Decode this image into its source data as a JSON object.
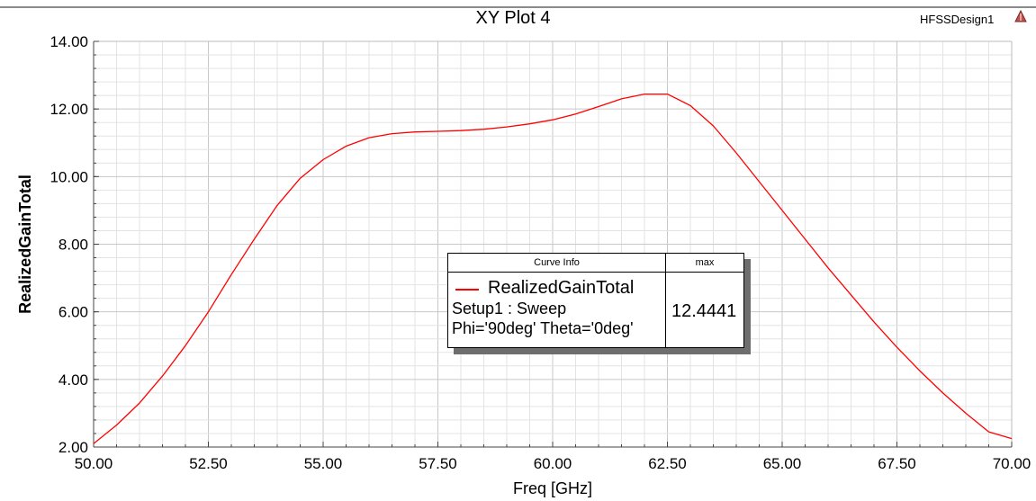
{
  "chart_data": {
    "type": "line",
    "title": "XY Plot 4",
    "xlabel": "Freq [GHz]",
    "ylabel": "RealizedGainTotal",
    "xlim": [
      50.0,
      70.0
    ],
    "ylim": [
      2.0,
      14.0
    ],
    "x_ticks": [
      "50.00",
      "52.50",
      "55.00",
      "57.50",
      "60.00",
      "62.50",
      "65.00",
      "67.50",
      "70.00"
    ],
    "y_ticks": [
      "2.00",
      "4.00",
      "6.00",
      "8.00",
      "10.00",
      "12.00",
      "14.00"
    ],
    "grid": true,
    "series": [
      {
        "name": "RealizedGainTotal",
        "color": "#ff0000",
        "x": [
          50.0,
          50.5,
          51.0,
          51.5,
          52.0,
          52.5,
          53.0,
          53.5,
          54.0,
          54.5,
          55.0,
          55.5,
          56.0,
          56.5,
          57.0,
          57.5,
          58.0,
          58.5,
          59.0,
          59.5,
          60.0,
          60.5,
          61.0,
          61.5,
          62.0,
          62.5,
          63.0,
          63.5,
          64.0,
          64.5,
          65.0,
          65.5,
          66.0,
          66.5,
          67.0,
          67.5,
          68.0,
          68.5,
          69.0,
          69.5,
          70.0
        ],
        "y": [
          2.1,
          2.65,
          3.3,
          4.1,
          5.0,
          6.0,
          7.1,
          8.15,
          9.15,
          9.95,
          10.5,
          10.9,
          11.15,
          11.27,
          11.32,
          11.34,
          11.36,
          11.4,
          11.47,
          11.56,
          11.68,
          11.85,
          12.07,
          12.3,
          12.44,
          12.44,
          12.1,
          11.5,
          10.7,
          9.85,
          9.0,
          8.15,
          7.3,
          6.5,
          5.7,
          4.95,
          4.25,
          3.6,
          3.0,
          2.45,
          2.25
        ]
      }
    ]
  },
  "header": {
    "design_name": "HFSSDesign1",
    "design_icon": "hfss-triangle-icon"
  },
  "legend": {
    "header_info": "Curve Info",
    "header_max": "max",
    "trace_name": "RealizedGainTotal",
    "setup": "Setup1 : Sweep",
    "variation": "Phi='90deg' Theta='0deg'",
    "max_value": "12.4441"
  }
}
